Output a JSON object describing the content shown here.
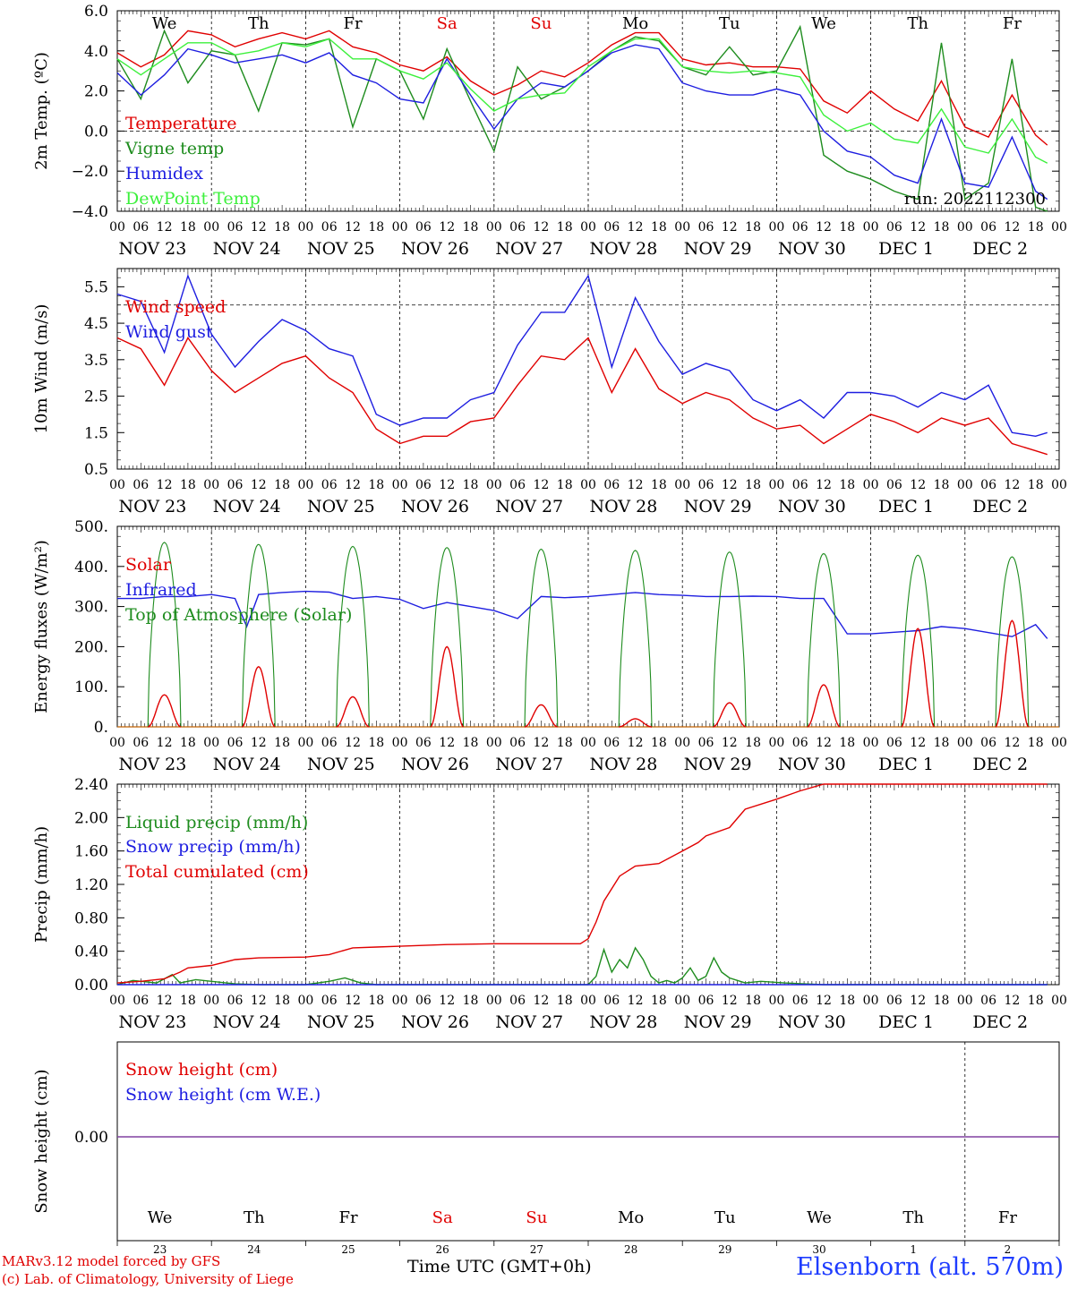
{
  "station_label": "Elsenborn (alt. 570m)",
  "model_label": "MARv3.12 model forced by GFS",
  "credit_label": "(c) Lab. of Climatology, University of Liege",
  "time_label": "Time UTC (GMT+0h)",
  "run_label": "run: 2022112300",
  "weekdays": [
    {
      "label": "We",
      "color": "#000000"
    },
    {
      "label": "Th",
      "color": "#000000"
    },
    {
      "label": "Fr",
      "color": "#000000"
    },
    {
      "label": "Sa",
      "color": "#e00000"
    },
    {
      "label": "Su",
      "color": "#e00000"
    },
    {
      "label": "Mo",
      "color": "#000000"
    },
    {
      "label": "Tu",
      "color": "#000000"
    },
    {
      "label": "We",
      "color": "#000000"
    },
    {
      "label": "Th",
      "color": "#000000"
    },
    {
      "label": "Fr",
      "color": "#000000"
    }
  ],
  "date_labels": [
    "NOV 23",
    "NOV 24",
    "NOV 25",
    "NOV 26",
    "NOV 27",
    "NOV 28",
    "NOV 29",
    "NOV 30",
    "DEC  1",
    "DEC  2"
  ],
  "day_numbers": [
    "23",
    "24",
    "25",
    "26",
    "27",
    "28",
    "29",
    "30",
    "1",
    "2"
  ],
  "hour_ticks": [
    "00",
    "06",
    "12",
    "18"
  ],
  "hour_end": "00",
  "chart_data": [
    {
      "type": "line",
      "ylabel": "2m Temp. (ºC)",
      "ylim": [
        -4,
        6
      ],
      "yticks": [
        "6.0",
        "4.0",
        "2.0",
        "0.0",
        "−2.0",
        "−4.0"
      ],
      "ytick_values": [
        6,
        4,
        2,
        0,
        -2,
        -4
      ],
      "dashed_y": 0,
      "x_unit": "hours since NOV 23 00 UTC",
      "series": [
        {
          "name": "Temperature",
          "color": "#e00000",
          "x": [
            0,
            6,
            12,
            18,
            24,
            30,
            36,
            42,
            48,
            54,
            60,
            66,
            72,
            78,
            84,
            90,
            96,
            102,
            108,
            114,
            120,
            126,
            132,
            138,
            144,
            150,
            156,
            162,
            168,
            174,
            180,
            186,
            192,
            198,
            204,
            210,
            216,
            222,
            228,
            234,
            237
          ],
          "y": [
            3.9,
            3.2,
            3.8,
            5.0,
            4.8,
            4.2,
            4.6,
            4.9,
            4.6,
            5.0,
            4.2,
            3.9,
            3.3,
            3.0,
            3.7,
            2.5,
            1.8,
            2.3,
            3.0,
            2.7,
            3.4,
            4.3,
            4.9,
            4.9,
            3.6,
            3.3,
            3.4,
            3.2,
            3.2,
            3.1,
            1.5,
            0.9,
            2.0,
            1.1,
            0.5,
            2.5,
            0.2,
            -0.3,
            1.8,
            -0.2,
            -0.7
          ]
        },
        {
          "name": "Vigne temp",
          "color": "#1e8c1e",
          "x": [
            0,
            6,
            12,
            18,
            24,
            30,
            36,
            42,
            48,
            54,
            60,
            66,
            72,
            78,
            84,
            90,
            96,
            102,
            108,
            114,
            120,
            126,
            132,
            138,
            144,
            150,
            156,
            162,
            168,
            174,
            180,
            186,
            192,
            198,
            204,
            210,
            216,
            222,
            228,
            234,
            237
          ],
          "y": [
            3.6,
            1.6,
            5.0,
            2.4,
            4.0,
            3.8,
            1.0,
            4.4,
            4.3,
            4.6,
            0.2,
            3.6,
            3.0,
            0.6,
            4.1,
            1.5,
            -1.0,
            3.2,
            1.6,
            2.2,
            3.0,
            4.0,
            4.7,
            4.5,
            3.2,
            2.8,
            4.2,
            2.8,
            3.0,
            5.2,
            -1.2,
            -2.0,
            -2.4,
            -3.0,
            -3.4,
            4.4,
            -3.4,
            -2.6,
            3.6,
            -3.8,
            -4.0
          ]
        },
        {
          "name": "Humidex",
          "color": "#1e1ee0",
          "x": [
            0,
            6,
            12,
            18,
            24,
            30,
            36,
            42,
            48,
            54,
            60,
            66,
            72,
            78,
            84,
            90,
            96,
            102,
            108,
            114,
            120,
            126,
            132,
            138,
            144,
            150,
            156,
            162,
            168,
            174,
            180,
            186,
            192,
            198,
            204,
            210,
            216,
            222,
            228,
            234,
            237
          ],
          "y": [
            2.9,
            1.8,
            2.8,
            4.1,
            3.8,
            3.4,
            3.6,
            3.8,
            3.4,
            3.9,
            2.8,
            2.4,
            1.6,
            1.4,
            3.6,
            1.8,
            0.1,
            1.6,
            2.4,
            2.2,
            3.0,
            3.9,
            4.3,
            4.1,
            2.4,
            2.0,
            1.8,
            1.8,
            2.1,
            1.8,
            0.0,
            -1.0,
            -1.3,
            -2.2,
            -2.6,
            0.6,
            -2.6,
            -2.8,
            -0.3,
            -3.0,
            -3.4
          ]
        },
        {
          "name": "DewPoint Temp",
          "color": "#3cf03c",
          "x": [
            0,
            6,
            12,
            18,
            24,
            30,
            36,
            42,
            48,
            54,
            60,
            66,
            72,
            78,
            84,
            90,
            96,
            102,
            108,
            114,
            120,
            126,
            132,
            138,
            144,
            150,
            156,
            162,
            168,
            174,
            180,
            186,
            192,
            198,
            204,
            210,
            216,
            222,
            228,
            234,
            237
          ],
          "y": [
            3.6,
            2.8,
            3.6,
            4.4,
            4.4,
            3.8,
            4.0,
            4.4,
            4.2,
            4.6,
            3.6,
            3.6,
            3.0,
            2.6,
            3.4,
            2.1,
            1.0,
            1.6,
            1.8,
            1.9,
            3.2,
            4.0,
            4.6,
            4.6,
            3.2,
            3.0,
            2.9,
            3.0,
            2.9,
            2.7,
            0.8,
            0.0,
            0.4,
            -0.4,
            -0.6,
            1.1,
            -0.8,
            -1.1,
            0.6,
            -1.3,
            -1.6
          ]
        }
      ]
    },
    {
      "type": "line",
      "ylabel": "10m Wind (m/s)",
      "ylim": [
        0.5,
        6.0
      ],
      "yticks": [
        "5.5",
        "4.5",
        "3.5",
        "2.5",
        "1.5",
        "0.5"
      ],
      "ytick_values": [
        5.5,
        4.5,
        3.5,
        2.5,
        1.5,
        0.5
      ],
      "dashed_y": 5.0,
      "x_unit": "hours since NOV 23 00 UTC",
      "series": [
        {
          "name": "Wind speed",
          "color": "#e00000",
          "x": [
            0,
            6,
            12,
            18,
            24,
            30,
            36,
            42,
            48,
            54,
            60,
            66,
            72,
            78,
            84,
            90,
            96,
            102,
            108,
            114,
            120,
            126,
            132,
            138,
            144,
            150,
            156,
            162,
            168,
            174,
            180,
            186,
            192,
            198,
            204,
            210,
            216,
            222,
            228,
            234,
            237
          ],
          "y": [
            4.1,
            3.8,
            2.8,
            4.1,
            3.2,
            2.6,
            3.0,
            3.4,
            3.6,
            3.0,
            2.6,
            1.6,
            1.2,
            1.4,
            1.4,
            1.8,
            1.9,
            2.8,
            3.6,
            3.5,
            4.1,
            2.6,
            3.8,
            2.7,
            2.3,
            2.6,
            2.4,
            1.9,
            1.6,
            1.7,
            1.2,
            1.6,
            2.0,
            1.8,
            1.5,
            1.9,
            1.7,
            1.9,
            1.2,
            1.0,
            0.9
          ]
        },
        {
          "name": "Wind gust",
          "color": "#1e1ee0",
          "x": [
            0,
            6,
            12,
            18,
            24,
            30,
            36,
            42,
            48,
            54,
            60,
            66,
            72,
            78,
            84,
            90,
            96,
            102,
            108,
            114,
            120,
            126,
            132,
            138,
            144,
            150,
            156,
            162,
            168,
            174,
            180,
            186,
            192,
            198,
            204,
            210,
            216,
            222,
            228,
            234,
            237
          ],
          "y": [
            5.3,
            5.1,
            3.7,
            5.8,
            4.2,
            3.3,
            4.0,
            4.6,
            4.3,
            3.8,
            3.6,
            2.0,
            1.7,
            1.9,
            1.9,
            2.4,
            2.6,
            3.9,
            4.8,
            4.8,
            5.8,
            3.3,
            5.2,
            4.0,
            3.1,
            3.4,
            3.2,
            2.4,
            2.1,
            2.4,
            1.9,
            2.6,
            2.6,
            2.5,
            2.2,
            2.6,
            2.4,
            2.8,
            1.5,
            1.4,
            1.5
          ]
        }
      ]
    },
    {
      "type": "line",
      "ylabel": "Energy fluxes (W/m²)",
      "ylim": [
        0,
        500
      ],
      "yticks": [
        "500.",
        "400.",
        "300.",
        "200.",
        "100.",
        "0."
      ],
      "ytick_values": [
        500,
        400,
        300,
        200,
        100,
        0
      ],
      "x_unit": "hours since NOV 23 00 UTC",
      "toa_peaks": [
        460,
        455,
        450,
        447,
        443,
        440,
        436,
        432,
        428,
        424
      ],
      "solar_peaks": [
        80,
        150,
        75,
        200,
        55,
        20,
        60,
        105,
        245,
        265
      ],
      "series": [
        {
          "name": "Solar",
          "color": "#e00000"
        },
        {
          "name": "Infrared",
          "color": "#1e1ee0",
          "x": [
            0,
            6,
            12,
            18,
            24,
            30,
            33,
            36,
            42,
            48,
            54,
            60,
            66,
            72,
            78,
            84,
            90,
            96,
            102,
            108,
            114,
            120,
            126,
            132,
            138,
            144,
            150,
            156,
            162,
            168,
            174,
            180,
            186,
            192,
            198,
            204,
            210,
            216,
            222,
            228,
            234,
            237
          ],
          "y": [
            320,
            320,
            325,
            325,
            330,
            320,
            250,
            330,
            335,
            338,
            336,
            320,
            325,
            318,
            295,
            310,
            300,
            290,
            270,
            325,
            322,
            325,
            330,
            335,
            330,
            328,
            325,
            325,
            326,
            325,
            320,
            320,
            232,
            232,
            236,
            240,
            250,
            245,
            235,
            225,
            255,
            220
          ]
        },
        {
          "name": "Top of Atmosphere (Solar)",
          "color": "#1e8c1e"
        }
      ]
    },
    {
      "type": "line",
      "ylabel": "Precip (mm/h)",
      "ylim": [
        0,
        2.4
      ],
      "yticks": [
        "2.40",
        "2.00",
        "1.60",
        "1.20",
        "0.80",
        "0.40",
        "0.00"
      ],
      "ytick_values": [
        2.4,
        2.0,
        1.6,
        1.2,
        0.8,
        0.4,
        0.0
      ],
      "x_unit": "hours since NOV 23 00 UTC",
      "series": [
        {
          "name": "Liquid precip (mm/h)",
          "color": "#1e8c1e",
          "x": [
            0,
            4,
            10,
            14,
            16,
            20,
            24,
            30,
            36,
            48,
            54,
            58,
            62,
            66,
            72,
            96,
            120,
            122,
            124,
            126,
            128,
            130,
            132,
            134,
            136,
            138,
            140,
            142,
            144,
            146,
            148,
            150,
            152,
            154,
            156,
            158,
            160,
            164,
            170,
            180,
            237
          ],
          "y": [
            0,
            0.05,
            0.02,
            0.12,
            0.02,
            0.06,
            0.04,
            0.01,
            0,
            0,
            0.04,
            0.08,
            0.02,
            0,
            0,
            0,
            0,
            0.1,
            0.42,
            0.15,
            0.3,
            0.2,
            0.44,
            0.3,
            0.1,
            0.02,
            0.05,
            0.02,
            0.08,
            0.2,
            0.05,
            0.1,
            0.32,
            0.15,
            0.08,
            0.05,
            0.02,
            0.04,
            0.02,
            0,
            0
          ]
        },
        {
          "name": "Snow precip (mm/h)",
          "color": "#1e1ee0",
          "x": [
            0,
            237
          ],
          "y": [
            0,
            0
          ]
        },
        {
          "name": "Total cumulated (cm)",
          "color": "#e00000",
          "x": [
            0,
            6,
            12,
            16,
            18,
            24,
            30,
            36,
            48,
            54,
            60,
            66,
            72,
            84,
            96,
            108,
            118,
            120,
            122,
            124,
            128,
            132,
            138,
            144,
            148,
            150,
            156,
            160,
            168,
            174,
            180,
            186,
            192,
            237
          ],
          "y": [
            0.02,
            0.04,
            0.07,
            0.15,
            0.2,
            0.23,
            0.3,
            0.32,
            0.33,
            0.36,
            0.44,
            0.45,
            0.46,
            0.48,
            0.49,
            0.49,
            0.49,
            0.55,
            0.75,
            1.0,
            1.3,
            1.42,
            1.45,
            1.6,
            1.7,
            1.78,
            1.88,
            2.1,
            2.22,
            2.32,
            2.4,
            2.4,
            2.4,
            2.4
          ]
        }
      ]
    },
    {
      "type": "line",
      "ylabel": "Snow height (cm)",
      "yticks": [
        "0.00"
      ],
      "ytick_values": [
        0
      ],
      "x_unit": "hours since NOV 23 00 UTC",
      "series": [
        {
          "name": "Snow height (cm)",
          "color": "#e00000",
          "x": [
            0,
            237
          ],
          "y": [
            0,
            0
          ]
        },
        {
          "name": "Snow height (cm W.E.)",
          "color": "#1e1ee0",
          "x": [
            0,
            237
          ],
          "y": [
            0,
            0
          ]
        }
      ]
    }
  ]
}
